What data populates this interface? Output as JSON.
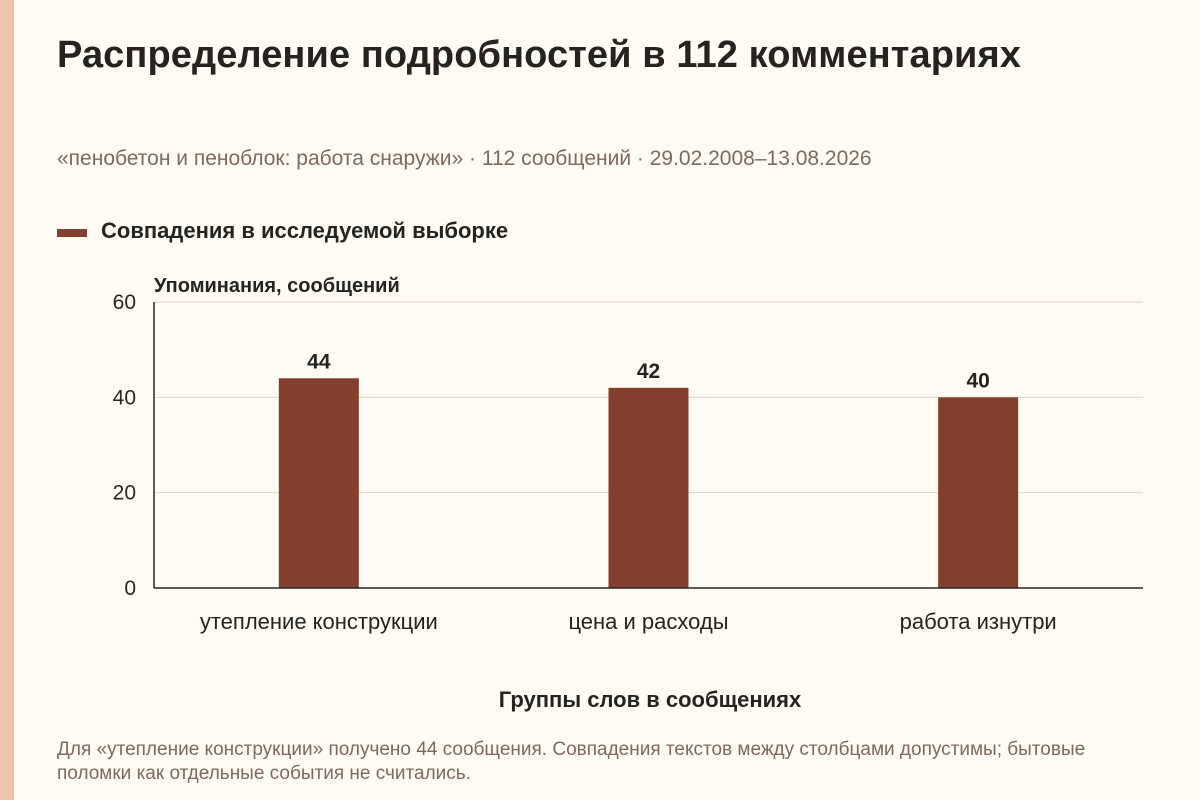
{
  "header": {
    "title": "Распределение подробностей в 112 комментариях",
    "subtitle": "«пенобетон и пеноблок: работа снаружи» · 112 сообщений · 29.02.2008–13.08.2026"
  },
  "legend": {
    "label": "Совпадения в исследуемой выборке"
  },
  "colors": {
    "bar": "#843e2e",
    "accent_strip": "#edc3ad",
    "grid": "#dcd6cc",
    "axis": "#2a2622"
  },
  "footnote": "Для «утепление конструкции» получено 44 сообщения. Совпадения текстов между столбцами допустимы; бытовые поломки как отдельные события не считались.",
  "chart_data": {
    "type": "bar",
    "title": "Распределение подробностей в 112 комментариях",
    "ylabel": "Упоминания, сообщений",
    "xlabel": "Группы слов в сообщениях",
    "ylim": [
      0,
      60
    ],
    "yticks": [
      0,
      20,
      40,
      60
    ],
    "grid": true,
    "legend_position": "top-left",
    "categories": [
      "утепление конструкции",
      "цена и расходы",
      "работа изнутри"
    ],
    "series": [
      {
        "name": "Совпадения в исследуемой выборке",
        "values": [
          44,
          42,
          40
        ]
      }
    ],
    "data_labels": [
      "44",
      "42",
      "40"
    ]
  }
}
